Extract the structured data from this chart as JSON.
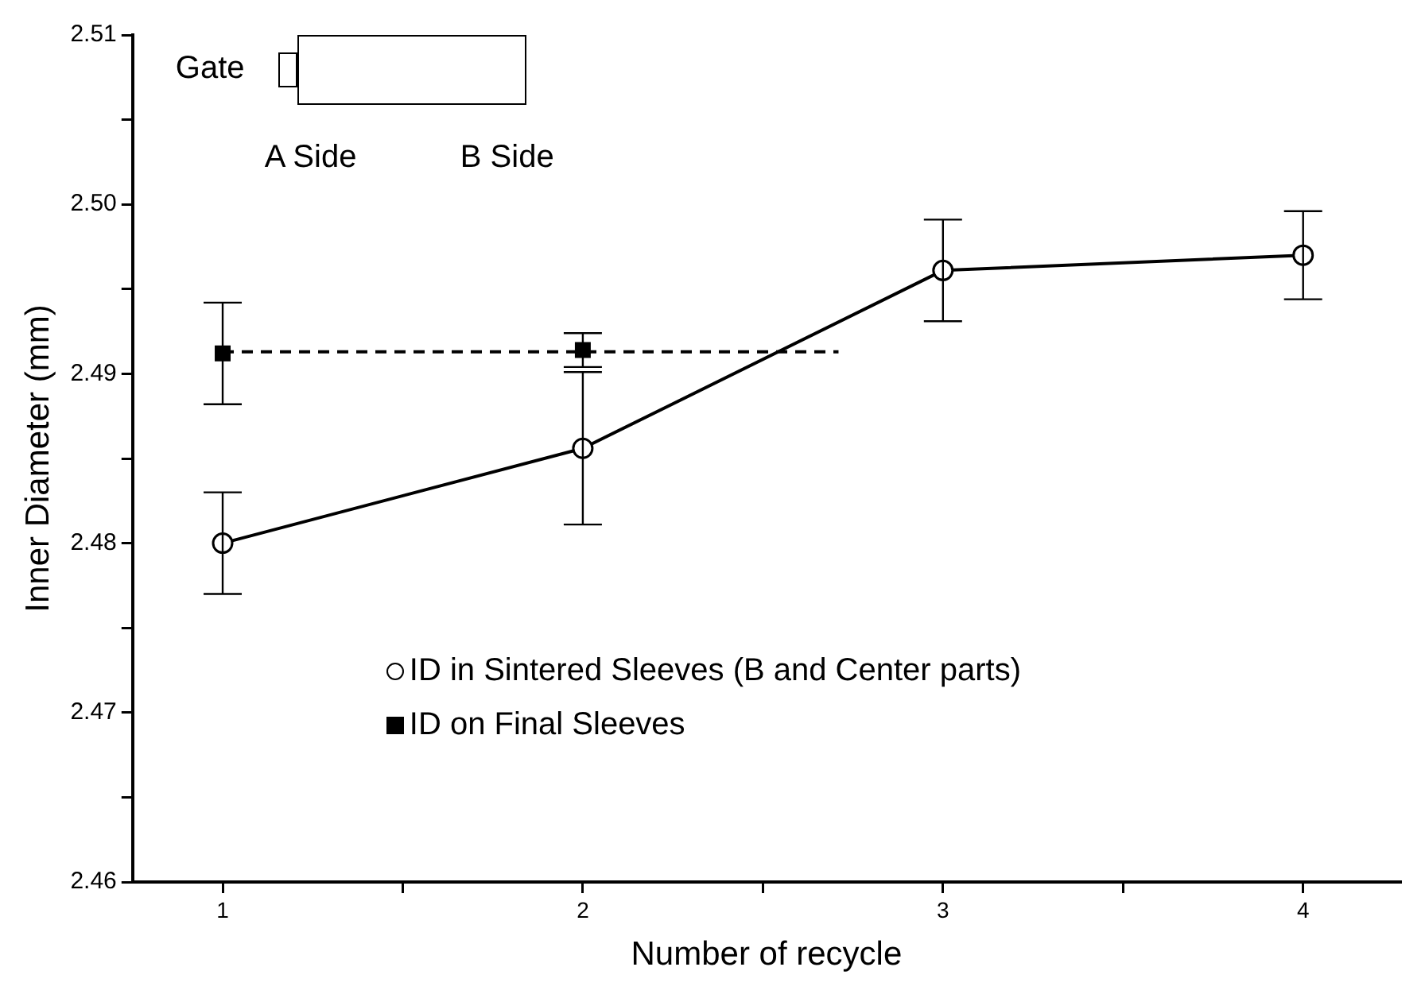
{
  "chart_data": {
    "type": "line",
    "xlabel": "Number of recycle",
    "ylabel": "Inner Diameter (mm)",
    "xlim": [
      0.75,
      4.27
    ],
    "xticks": [
      1,
      {
        "value": 1.5,
        "label": null
      },
      2,
      {
        "value": 2.5,
        "label": null
      },
      3,
      {
        "value": 3.5,
        "label": null
      },
      4
    ],
    "ylim": [
      2.46,
      2.51
    ],
    "yticks": [
      2.46,
      {
        "value": 2.465,
        "label": null
      },
      2.47,
      {
        "value": 2.475,
        "label": null
      },
      2.48,
      {
        "value": 2.485,
        "label": null
      },
      2.49,
      {
        "value": 2.495,
        "label": null
      },
      {
        "value": 2.5,
        "label": "2.50"
      },
      {
        "value": 2.505,
        "label": null
      },
      2.51
    ],
    "legend": "bottom",
    "annotations": [
      "Gate",
      "A Side",
      "B Side"
    ],
    "series": [
      {
        "name": "ID in Sintered Sleeves (B and Center parts)",
        "type": "line",
        "color": "#000000",
        "marker": "circle",
        "line_style": "solid",
        "x": [
          1,
          2,
          3,
          4
        ],
        "values": [
          2.48,
          2.4856,
          2.4961,
          2.497
        ],
        "errors": [
          0.003,
          0.0045,
          0.003,
          0.0026
        ]
      },
      {
        "name": "ID on Final Sleeves",
        "type": "scatter",
        "color": "#000000",
        "marker": "square",
        "x": [
          1,
          2
        ],
        "values": [
          2.4912,
          2.4914
        ],
        "errors": [
          0.003,
          0.001
        ]
      },
      {
        "type": "line",
        "color": "#000000",
        "marker": "none",
        "line_style": "dashed",
        "x": [
          1,
          2.71
        ],
        "values": [
          2.4913,
          2.4913
        ]
      }
    ]
  }
}
